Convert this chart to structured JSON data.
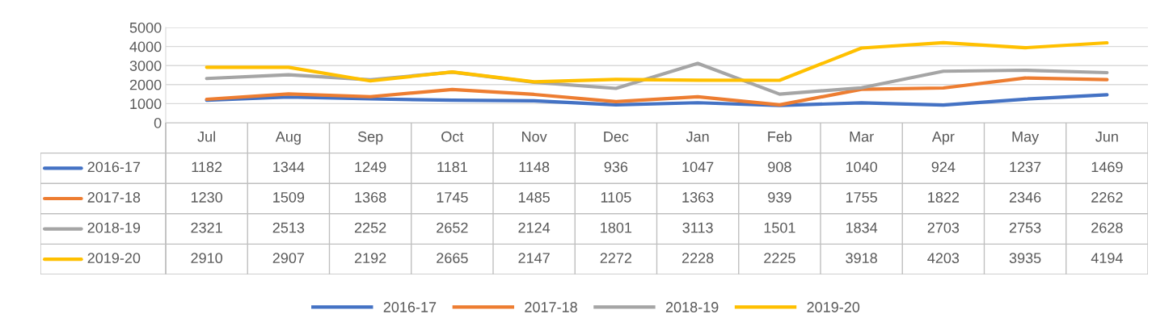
{
  "chart_data": {
    "type": "line",
    "categories": [
      "Jul",
      "Aug",
      "Sep",
      "Oct",
      "Nov",
      "Dec",
      "Jan",
      "Feb",
      "Mar",
      "Apr",
      "May",
      "Jun"
    ],
    "series": [
      {
        "name": "2016-17",
        "color": "#4472c4",
        "values": [
          1182,
          1344,
          1249,
          1181,
          1148,
          936,
          1047,
          908,
          1040,
          924,
          1237,
          1469
        ]
      },
      {
        "name": "2017-18",
        "color": "#ed7d31",
        "values": [
          1230,
          1509,
          1368,
          1745,
          1485,
          1105,
          1363,
          939,
          1755,
          1822,
          2346,
          2262
        ]
      },
      {
        "name": "2018-19",
        "color": "#a5a5a5",
        "values": [
          2321,
          2513,
          2252,
          2652,
          2124,
          1801,
          3113,
          1501,
          1834,
          2703,
          2753,
          2628
        ]
      },
      {
        "name": "2019-20",
        "color": "#ffc000",
        "values": [
          2910,
          2907,
          2192,
          2665,
          2147,
          2272,
          2228,
          2225,
          3918,
          4203,
          3935,
          4194
        ]
      }
    ],
    "ylim": [
      0,
      5000
    ],
    "yticks": [
      0,
      1000,
      2000,
      3000,
      4000,
      5000
    ],
    "grid": "y",
    "legend": "bottom",
    "data_labels": true,
    "marker": "none",
    "line_style": "solid"
  }
}
